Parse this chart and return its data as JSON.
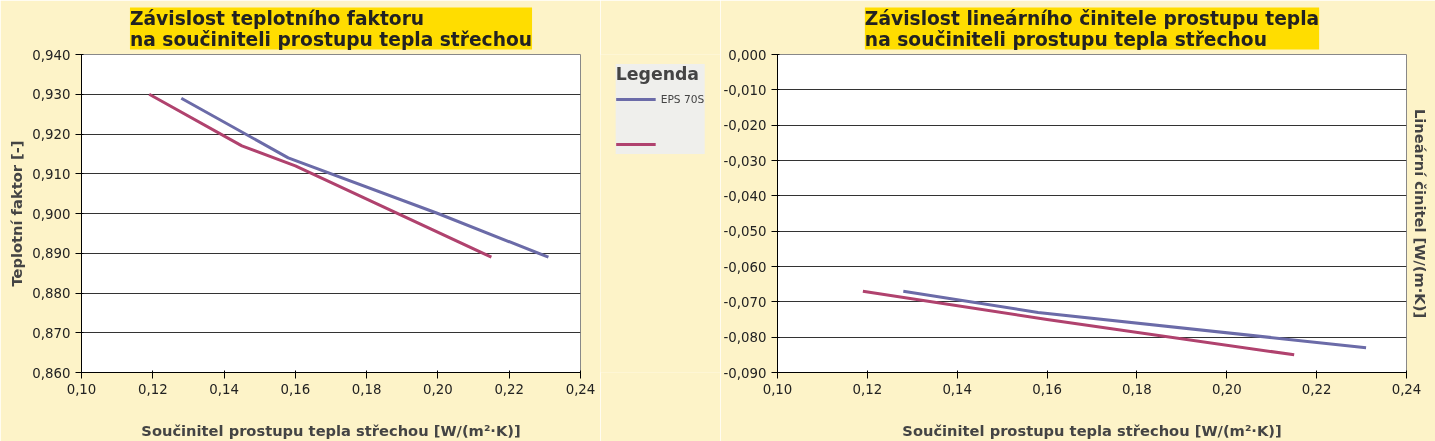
{
  "chart_data": [
    {
      "type": "line",
      "title": "Závislost teplotního faktoru\nna součiniteli prostupu tepla střechou",
      "xlabel": "Součinitel prostupu tepla střechou [W/(m²·K)]",
      "ylabel": "Teplotní faktor [-]",
      "legend_title": "Legenda",
      "legend": "right",
      "grid": "y",
      "marker": "none",
      "xlim": [
        0.1,
        0.24
      ],
      "xticks": [
        {
          "value": 0.1,
          "label": "0,10"
        },
        {
          "value": 0.12,
          "label": "0,12"
        },
        {
          "value": 0.14,
          "label": "0,14"
        },
        {
          "value": 0.16,
          "label": "0,16"
        },
        {
          "value": 0.18,
          "label": "0,18"
        },
        {
          "value": 0.2,
          "label": "0,20"
        },
        {
          "value": 0.22,
          "label": "0,22"
        },
        {
          "value": 0.24,
          "label": "0,24"
        }
      ],
      "ylim": [
        0.86,
        0.94
      ],
      "yticks": [
        {
          "value": 0.86,
          "label": "0,860"
        },
        {
          "value": 0.87,
          "label": "0,870"
        },
        {
          "value": 0.88,
          "label": "0,880"
        },
        {
          "value": 0.89,
          "label": "0,890"
        },
        {
          "value": 0.9,
          "label": "0,900"
        },
        {
          "value": 0.91,
          "label": "0,910"
        },
        {
          "value": 0.92,
          "label": "0,920"
        },
        {
          "value": 0.93,
          "label": "0,930"
        },
        {
          "value": 0.94,
          "label": "0,940"
        }
      ],
      "series": [
        {
          "name": "EPS 70S",
          "color": "#6b6ba8",
          "x": [
            0.128,
            0.158,
            0.2,
            0.231
          ],
          "values": [
            0.929,
            0.914,
            0.9,
            0.889
          ]
        },
        {
          "color": "#b0426e",
          "x": [
            0.119,
            0.145,
            0.16,
            0.215
          ],
          "values": [
            0.93,
            0.917,
            0.912,
            0.889
          ]
        }
      ]
    },
    {
      "type": "line",
      "title": "Závislost lineárního činitele prostupu tepla\nna součiniteli prostupu tepla střechou",
      "xlabel": "Součinitel prostupu tepla střechou [W/(m²·K)]",
      "ylabel": "Lineární činitel [W/(m·K)]",
      "grid": "y",
      "marker": "none",
      "xlim": [
        0.1,
        0.24
      ],
      "xticks": [
        {
          "value": 0.1,
          "label": "0,10"
        },
        {
          "value": 0.12,
          "label": "0,12"
        },
        {
          "value": 0.14,
          "label": "0,14"
        },
        {
          "value": 0.16,
          "label": "0,16"
        },
        {
          "value": 0.18,
          "label": "0,18"
        },
        {
          "value": 0.2,
          "label": "0,20"
        },
        {
          "value": 0.22,
          "label": "0,22"
        },
        {
          "value": 0.24,
          "label": "0,24"
        }
      ],
      "ylim": [
        -0.09,
        0.0
      ],
      "yticks": [
        {
          "value": 0.0,
          "label": "0,000"
        },
        {
          "value": -0.01,
          "label": "-0,010"
        },
        {
          "value": -0.02,
          "label": "-0,020"
        },
        {
          "value": -0.03,
          "label": "-0,030"
        },
        {
          "value": -0.04,
          "label": "-0,040"
        },
        {
          "value": -0.05,
          "label": "-0,050"
        },
        {
          "value": -0.06,
          "label": "-0,060"
        },
        {
          "value": -0.07,
          "label": "-0,070"
        },
        {
          "value": -0.08,
          "label": "-0,080"
        },
        {
          "value": -0.09,
          "label": "-0,090"
        }
      ],
      "series": [
        {
          "color": "#6b6ba8",
          "x": [
            0.128,
            0.158,
            0.231
          ],
          "values": [
            -0.067,
            -0.073,
            -0.083
          ]
        },
        {
          "color": "#b0426e",
          "x": [
            0.119,
            0.16,
            0.215
          ],
          "values": [
            -0.067,
            -0.075,
            -0.085
          ]
        }
      ]
    }
  ]
}
